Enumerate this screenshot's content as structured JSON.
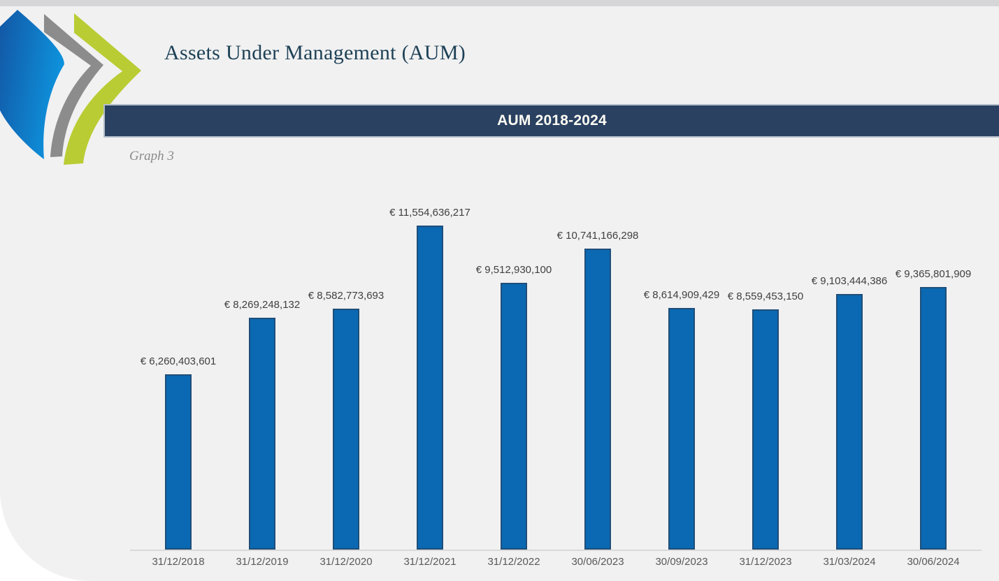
{
  "page": {
    "title": "Assets Under Management (AUM)",
    "banner_title": "AUM 2018-2024",
    "caption": "Graph 3"
  },
  "logo": {
    "name": "three-chevron-leaf-logo",
    "colors": {
      "blue_dark": "#1257a5",
      "blue_light": "#0e93dd",
      "gray": "#8c8c8c",
      "green": "#b9cc33"
    }
  },
  "colors": {
    "page_background": "#f1f1f2",
    "top_strip": "#d6d6d8",
    "banner_background": "#2a4161",
    "banner_border": "#b6bfcb",
    "banner_text": "#fffdf5",
    "title_text": "#1e4156",
    "bar_fill": "#0a69b2",
    "bar_border": "#1f4e79",
    "value_label_text": "#3f3f3f",
    "axis_label_text": "#595959",
    "axis_line": "#d9d9d9"
  },
  "chart_data": {
    "type": "bar",
    "title": "AUM 2018-2024",
    "categories": [
      "31/12/2018",
      "31/12/2019",
      "31/12/2020",
      "31/12/2021",
      "31/12/2022",
      "30/06/2023",
      "30/09/2023",
      "31/12/2023",
      "31/03/2024",
      "30/06/2024"
    ],
    "values": [
      6260403601,
      8269248132,
      8582773693,
      11554636217,
      9512930100,
      10741166298,
      8614909429,
      8559453150,
      9103444386,
      9365801909
    ],
    "value_labels": [
      "€ 6,260,403,601",
      "€ 8,269,248,132",
      "€ 8,582,773,693",
      "€ 11,554,636,217",
      "€ 9,512,930,100",
      "€ 10,741,166,298",
      "€ 8,614,909,429",
      "€ 8,559,453,150",
      "€ 9,103,444,386",
      "€ 9,365,801,909"
    ],
    "currency": "EUR",
    "xlabel": "",
    "ylabel": "",
    "ylim": [
      0,
      12600000000
    ],
    "grid": false,
    "legend": "none",
    "data_label_position": "above-bars",
    "bar_fill": "#0a69b2",
    "bar_border": "#1f4e79"
  }
}
